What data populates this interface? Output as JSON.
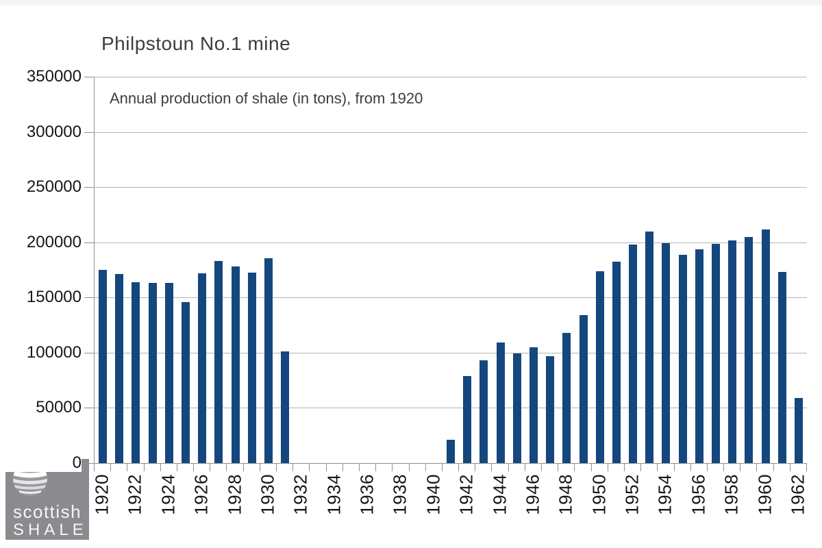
{
  "chart_data": {
    "type": "bar",
    "title": "Philpstoun No.1 mine",
    "subtitle": "Annual production of shale (in tons), from 1920",
    "xlabel": "",
    "ylabel": "",
    "x": [
      1920,
      1921,
      1922,
      1923,
      1924,
      1925,
      1926,
      1927,
      1928,
      1929,
      1930,
      1931,
      1932,
      1933,
      1934,
      1935,
      1936,
      1937,
      1938,
      1939,
      1940,
      1941,
      1942,
      1943,
      1944,
      1945,
      1946,
      1947,
      1948,
      1949,
      1950,
      1951,
      1952,
      1953,
      1954,
      1955,
      1956,
      1957,
      1958,
      1959,
      1960,
      1961,
      1962
    ],
    "values": [
      175000,
      171500,
      164000,
      163000,
      163500,
      146000,
      172000,
      183000,
      178000,
      172500,
      185500,
      101000,
      null,
      null,
      null,
      null,
      null,
      null,
      null,
      null,
      null,
      21000,
      79000,
      93000,
      109500,
      99000,
      105000,
      96500,
      118000,
      134000,
      173500,
      182500,
      198000,
      210000,
      199000,
      188500,
      193500,
      198500,
      201500,
      204500,
      211500,
      173000,
      59000
    ],
    "ylim": [
      0,
      350000
    ],
    "yticks": [
      0,
      50000,
      100000,
      150000,
      200000,
      250000,
      300000,
      350000
    ],
    "ytick_labels": [
      "350000",
      "300000",
      "250000",
      "200000",
      "150000",
      "100000",
      "50000",
      "0"
    ],
    "xtick_labels": [
      "1920",
      "1922",
      "1924",
      "1926",
      "1928",
      "1930",
      "1932",
      "1934",
      "1936",
      "1938",
      "1940",
      "1942",
      "1944",
      "1946",
      "1948",
      "1950",
      "1952",
      "1954",
      "1956",
      "1958",
      "1960",
      "1962"
    ],
    "grid": true,
    "legend": "none",
    "bar_color": "#14477D",
    "gridline_color": "#B4B4B4",
    "axis_color": "#8F8F8F"
  },
  "logo": {
    "line1": "scottish",
    "line2": "SHALE",
    "bg_color": "#8B8B8F",
    "icon": "globe"
  }
}
